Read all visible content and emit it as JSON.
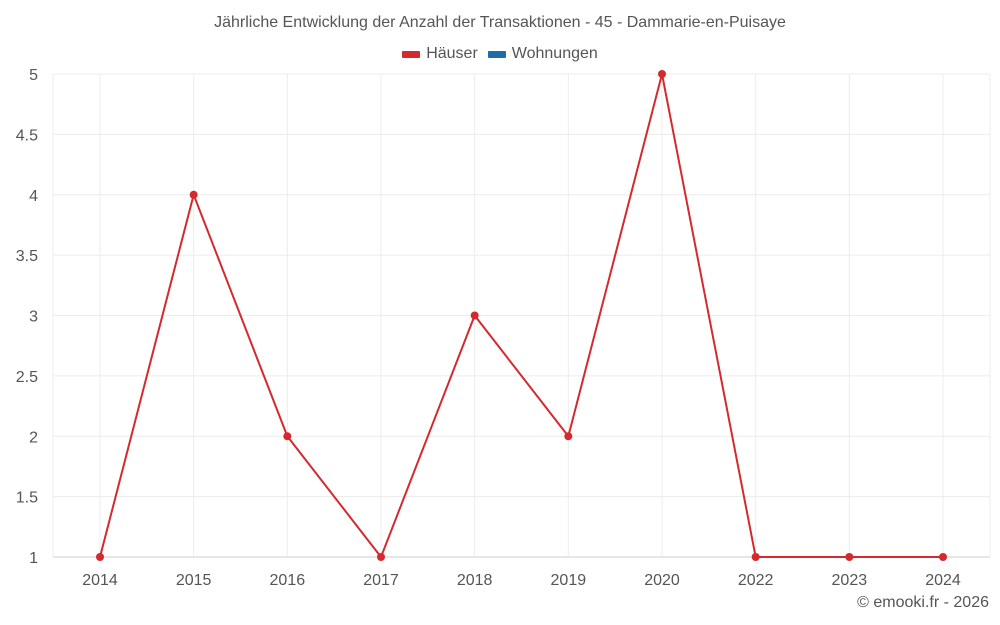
{
  "chart_data": {
    "type": "line",
    "title": "Jährliche Entwicklung der Anzahl der Transaktionen - 45 - Dammarie-en-Puisaye",
    "categories": [
      "2014",
      "2015",
      "2016",
      "2017",
      "2018",
      "2019",
      "2020",
      "2022",
      "2023",
      "2024"
    ],
    "series": [
      {
        "name": "Häuser",
        "color": "#d42a2f",
        "values": [
          1,
          4,
          2,
          1,
          3,
          2,
          5,
          1,
          1,
          1
        ]
      },
      {
        "name": "Wohnungen",
        "color": "#1e6ba8",
        "values": []
      }
    ],
    "xlabel": "",
    "ylabel": "",
    "ylim": [
      1,
      5
    ],
    "yticks": [
      "1",
      "1.5",
      "2",
      "2.5",
      "3",
      "3.5",
      "4",
      "4.5",
      "5"
    ],
    "grid": true,
    "legend_position": "top"
  },
  "legend": [
    {
      "label": "Häuser",
      "color": "#d42a2f"
    },
    {
      "label": "Wohnungen",
      "color": "#1e6ba8"
    }
  ],
  "credit": "© emooki.fr - 2026"
}
